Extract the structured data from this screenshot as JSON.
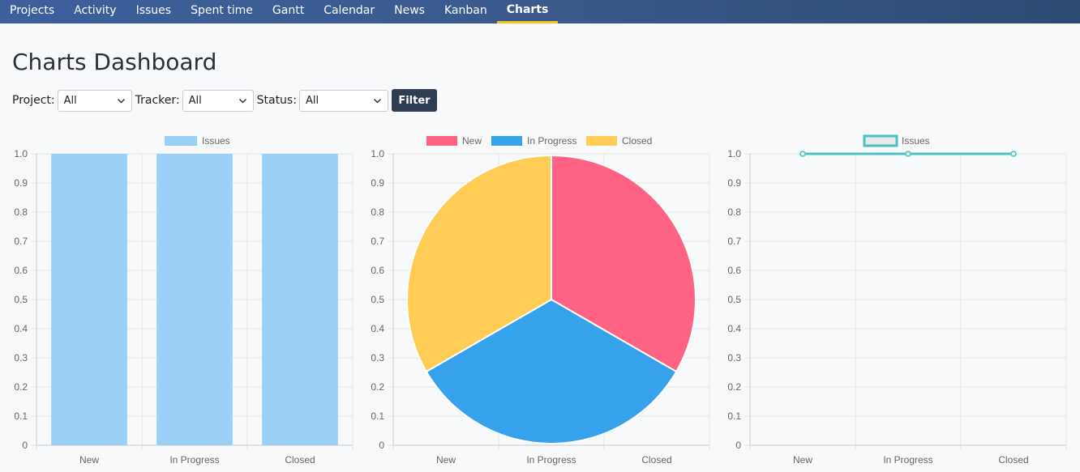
{
  "nav": {
    "items": [
      {
        "label": "Projects"
      },
      {
        "label": "Activity"
      },
      {
        "label": "Issues"
      },
      {
        "label": "Spent time"
      },
      {
        "label": "Gantt"
      },
      {
        "label": "Calendar"
      },
      {
        "label": "News"
      },
      {
        "label": "Kanban"
      },
      {
        "label": "Charts",
        "active": true
      }
    ]
  },
  "page": {
    "title": "Charts Dashboard"
  },
  "filters": {
    "project": {
      "label": "Project:",
      "value": "All"
    },
    "tracker": {
      "label": "Tracker:",
      "value": "All"
    },
    "status": {
      "label": "Status:",
      "value": "All"
    },
    "button_label": "Filter"
  },
  "colors": {
    "bar": "#9ad0f5",
    "new": "#ff6384",
    "in_progress": "#36a2eb",
    "closed": "#ffcd56",
    "line": "#4bc0c0",
    "filter_button": "#2c3e50",
    "active_tab_underline": "#f5c518"
  },
  "chart_data": [
    {
      "type": "bar",
      "legend": [
        "Issues"
      ],
      "categories": [
        "New",
        "In Progress",
        "Closed"
      ],
      "series": [
        {
          "name": "Issues",
          "values": [
            1,
            1,
            1
          ]
        }
      ],
      "ylim": [
        0,
        1
      ],
      "yticks": [
        "1.0",
        "0.9",
        "0.8",
        "0.7",
        "0.6",
        "0.5",
        "0.4",
        "0.3",
        "0.2",
        "0.1",
        "0"
      ],
      "grid": true,
      "legend_position": "top"
    },
    {
      "type": "pie",
      "legend": [
        "New",
        "In Progress",
        "Closed"
      ],
      "categories": [
        "New",
        "In Progress",
        "Closed"
      ],
      "values": [
        1,
        1,
        1
      ],
      "ylim": [
        0,
        1
      ],
      "yticks": [
        "1.0",
        "0.9",
        "0.8",
        "0.7",
        "0.6",
        "0.5",
        "0.4",
        "0.3",
        "0.2",
        "0.1",
        "0"
      ],
      "grid": true,
      "legend_position": "top"
    },
    {
      "type": "line",
      "legend": [
        "Issues"
      ],
      "categories": [
        "New",
        "In Progress",
        "Closed"
      ],
      "series": [
        {
          "name": "Issues",
          "values": [
            1,
            1,
            1
          ]
        }
      ],
      "ylim": [
        0,
        1
      ],
      "yticks": [
        "1.0",
        "0.9",
        "0.8",
        "0.7",
        "0.6",
        "0.5",
        "0.4",
        "0.3",
        "0.2",
        "0.1",
        "0"
      ],
      "grid": true,
      "legend_position": "top"
    }
  ]
}
